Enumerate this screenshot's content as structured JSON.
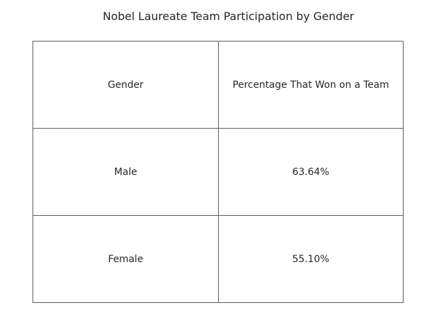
{
  "chart_data": {
    "type": "table",
    "title": "Nobel Laureate Team Participation by Gender",
    "columns": [
      "Gender",
      "Percentage That Won on a Team"
    ],
    "rows": [
      [
        "Male",
        "63.64%"
      ],
      [
        "Female",
        "55.10%"
      ]
    ]
  }
}
